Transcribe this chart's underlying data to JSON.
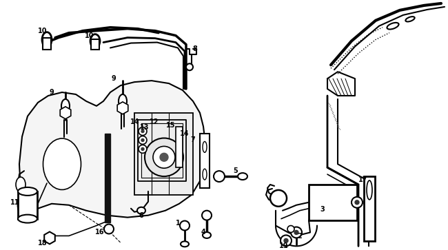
{
  "bg_color": "#ffffff",
  "line_color": "#000000",
  "fig_width": 6.5,
  "fig_height": 3.63,
  "dpi": 100
}
